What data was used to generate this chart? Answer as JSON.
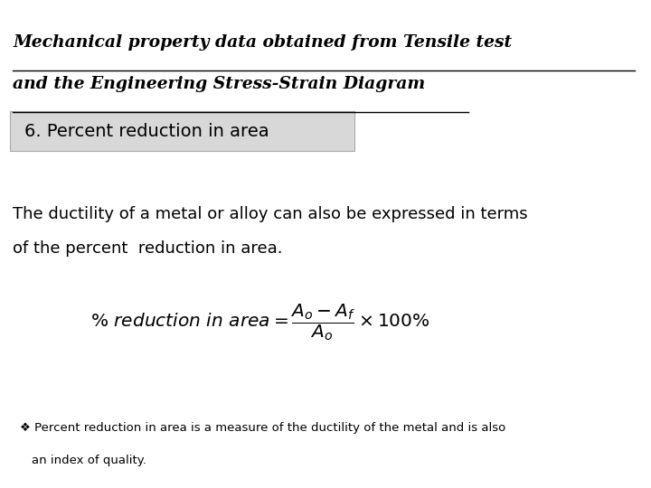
{
  "bg_color": "#ffffff",
  "title_line1": "Mechanical property data obtained from Tensile test",
  "title_line2": "and the Engineering Stress-Strain Diagram",
  "section_label": "6. Percent reduction in area",
  "section_bg": "#d8d8d8",
  "body_text_line1": "The ductility of a metal or alloy can also be expressed in terms",
  "body_text_line2": "of the percent  reduction in area.",
  "note_diamond": "❖",
  "note_text_line1": "Percent reduction in area is a measure of the ductility of the metal and is also",
  "note_text_line2": "an index of quality."
}
